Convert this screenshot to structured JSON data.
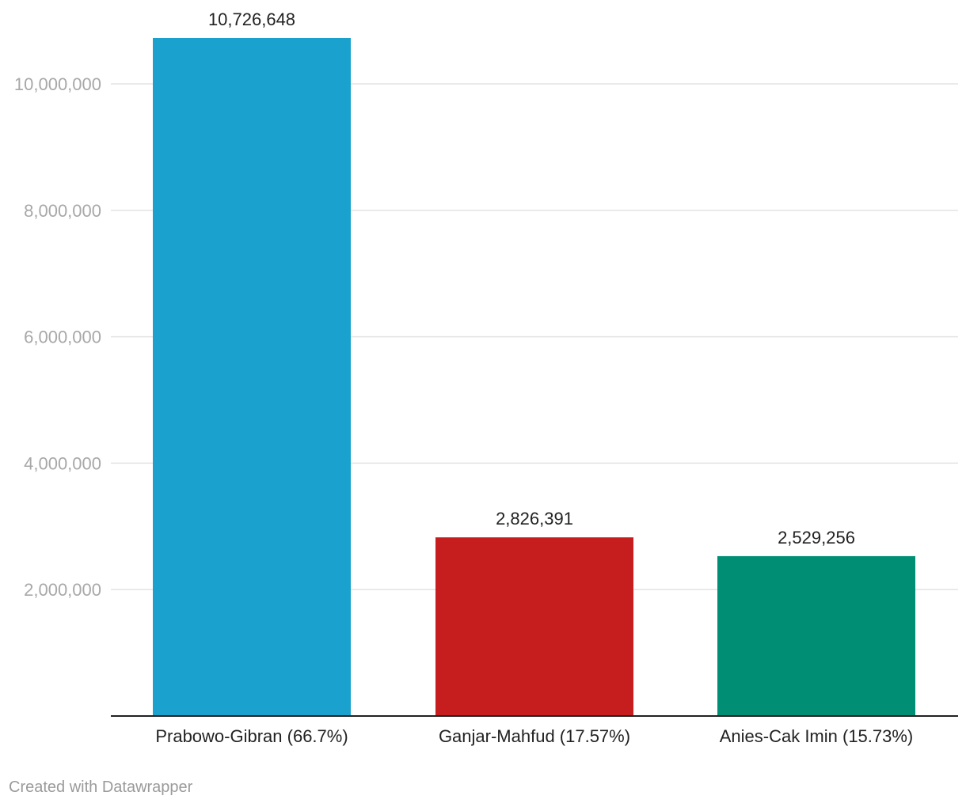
{
  "chart_data": {
    "type": "bar",
    "categories": [
      "Prabowo-Gibran (66.7%)",
      "Ganjar-Mahfud (17.57%)",
      "Anies-Cak Imin (15.73%)"
    ],
    "values": [
      10726648,
      2826391,
      2529256
    ],
    "value_labels": [
      "10,726,648",
      "2,826,391",
      "2,529,256"
    ],
    "colors": [
      "#1aa1cd",
      "#c61d1f",
      "#008f75"
    ],
    "yticks": [
      2000000,
      4000000,
      6000000,
      8000000,
      10000000
    ],
    "ytick_labels": [
      "2,000,000",
      "4,000,000",
      "6,000,000",
      "8,000,000",
      "10,000,000"
    ],
    "ylim": [
      0,
      10726648
    ],
    "grid": true,
    "legend": "none"
  },
  "footer": {
    "credit": "Created with Datawrapper"
  }
}
